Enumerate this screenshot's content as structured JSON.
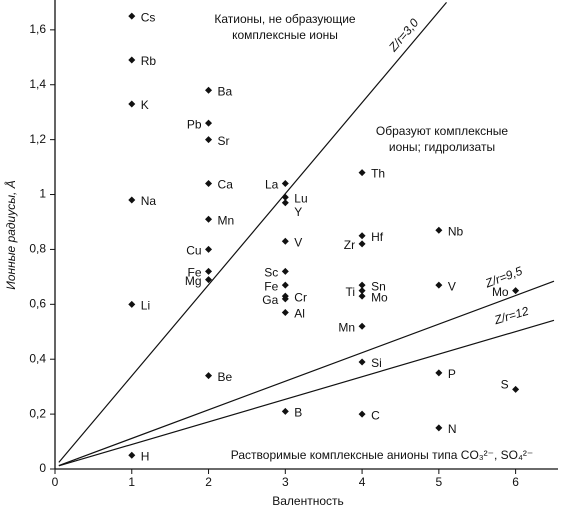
{
  "chart_data": {
    "type": "scatter",
    "xlabel": "Валентность",
    "ylabel": "Ионные радиусы, Å",
    "xlim": [
      0,
      6.5
    ],
    "ylim": [
      0,
      1.7
    ],
    "xticks": [
      0,
      1,
      2,
      3,
      4,
      5,
      6
    ],
    "yticks": [
      0,
      {
        "value": 0.2,
        "label": "0,2"
      },
      {
        "value": 0.4,
        "label": "0,4"
      },
      {
        "value": 0.6,
        "label": "0,6"
      },
      {
        "value": 0.8,
        "label": "0,8"
      },
      1,
      {
        "value": 1.2,
        "label": "1,2"
      },
      {
        "value": 1.4,
        "label": "1,4"
      },
      {
        "value": 1.6,
        "label": "1,6"
      }
    ],
    "color": "#111111",
    "points": [
      {
        "label": "Cs",
        "x": 1,
        "y": 1.65
      },
      {
        "label": "Rb",
        "x": 1,
        "y": 1.49
      },
      {
        "label": "K",
        "x": 1,
        "y": 1.33
      },
      {
        "label": "Na",
        "x": 1,
        "y": 0.98
      },
      {
        "label": "Li",
        "x": 1,
        "y": 0.6
      },
      {
        "label": "H",
        "x": 1,
        "y": 0.05
      },
      {
        "label": "Ba",
        "x": 2,
        "y": 1.38
      },
      {
        "label": "Pb",
        "x": 2,
        "y": 1.26
      },
      {
        "label": "Sr",
        "x": 2,
        "y": 1.2
      },
      {
        "label": "Ca",
        "x": 2,
        "y": 1.04
      },
      {
        "label": "Mn",
        "x": 2,
        "y": 0.91
      },
      {
        "label": "Cu",
        "x": 2,
        "y": 0.8
      },
      {
        "label": "Fe",
        "x": 2,
        "y": 0.72
      },
      {
        "label": "Mg",
        "x": 2,
        "y": 0.69
      },
      {
        "label": "Be",
        "x": 2,
        "y": 0.34
      },
      {
        "label": "La",
        "x": 3,
        "y": 1.04
      },
      {
        "label": "Lu",
        "x": 3,
        "y": 0.99
      },
      {
        "label": "Y",
        "x": 3,
        "y": 0.97
      },
      {
        "label": "V",
        "x": 3,
        "y": 0.83
      },
      {
        "label": "Sc",
        "x": 3,
        "y": 0.72
      },
      {
        "label": "Fe",
        "x": 3,
        "y": 0.67
      },
      {
        "label": "Cr",
        "x": 3,
        "y": 0.63
      },
      {
        "label": "Ga",
        "x": 3,
        "y": 0.62
      },
      {
        "label": "Al",
        "x": 3,
        "y": 0.57
      },
      {
        "label": "B",
        "x": 3,
        "y": 0.21
      },
      {
        "label": "Th",
        "x": 4,
        "y": 1.08
      },
      {
        "label": "Hf",
        "x": 4,
        "y": 0.85
      },
      {
        "label": "Zr",
        "x": 4,
        "y": 0.82
      },
      {
        "label": "Ti",
        "x": 4,
        "y": 0.65
      },
      {
        "label": "Sn",
        "x": 4,
        "y": 0.67
      },
      {
        "label": "Mo",
        "x": 4,
        "y": 0.63
      },
      {
        "label": "Mn",
        "x": 4,
        "y": 0.52
      },
      {
        "label": "Si",
        "x": 4,
        "y": 0.39
      },
      {
        "label": "C",
        "x": 4,
        "y": 0.2
      },
      {
        "label": "Nb",
        "x": 5,
        "y": 0.87
      },
      {
        "label": "V",
        "x": 5,
        "y": 0.67
      },
      {
        "label": "P",
        "x": 5,
        "y": 0.35
      },
      {
        "label": "N",
        "x": 5,
        "y": 0.15
      },
      {
        "label": "Mo",
        "x": 6,
        "y": 0.65
      },
      {
        "label": "S",
        "x": 6,
        "y": 0.29
      }
    ],
    "lines": [
      {
        "label": "Z/r=3,0",
        "k": 3.0
      },
      {
        "label": "Z/r=9,5",
        "k": 9.5
      },
      {
        "label": "Z/r=12",
        "k": 12
      }
    ],
    "annotations": [
      "Катионы, не образующие",
      "комплексные ионы",
      "Образуют комплексные",
      "ионы; гидролизаты",
      "Растворимые комплексные анионы типа CO₃²⁻, SO₄²⁻"
    ]
  }
}
